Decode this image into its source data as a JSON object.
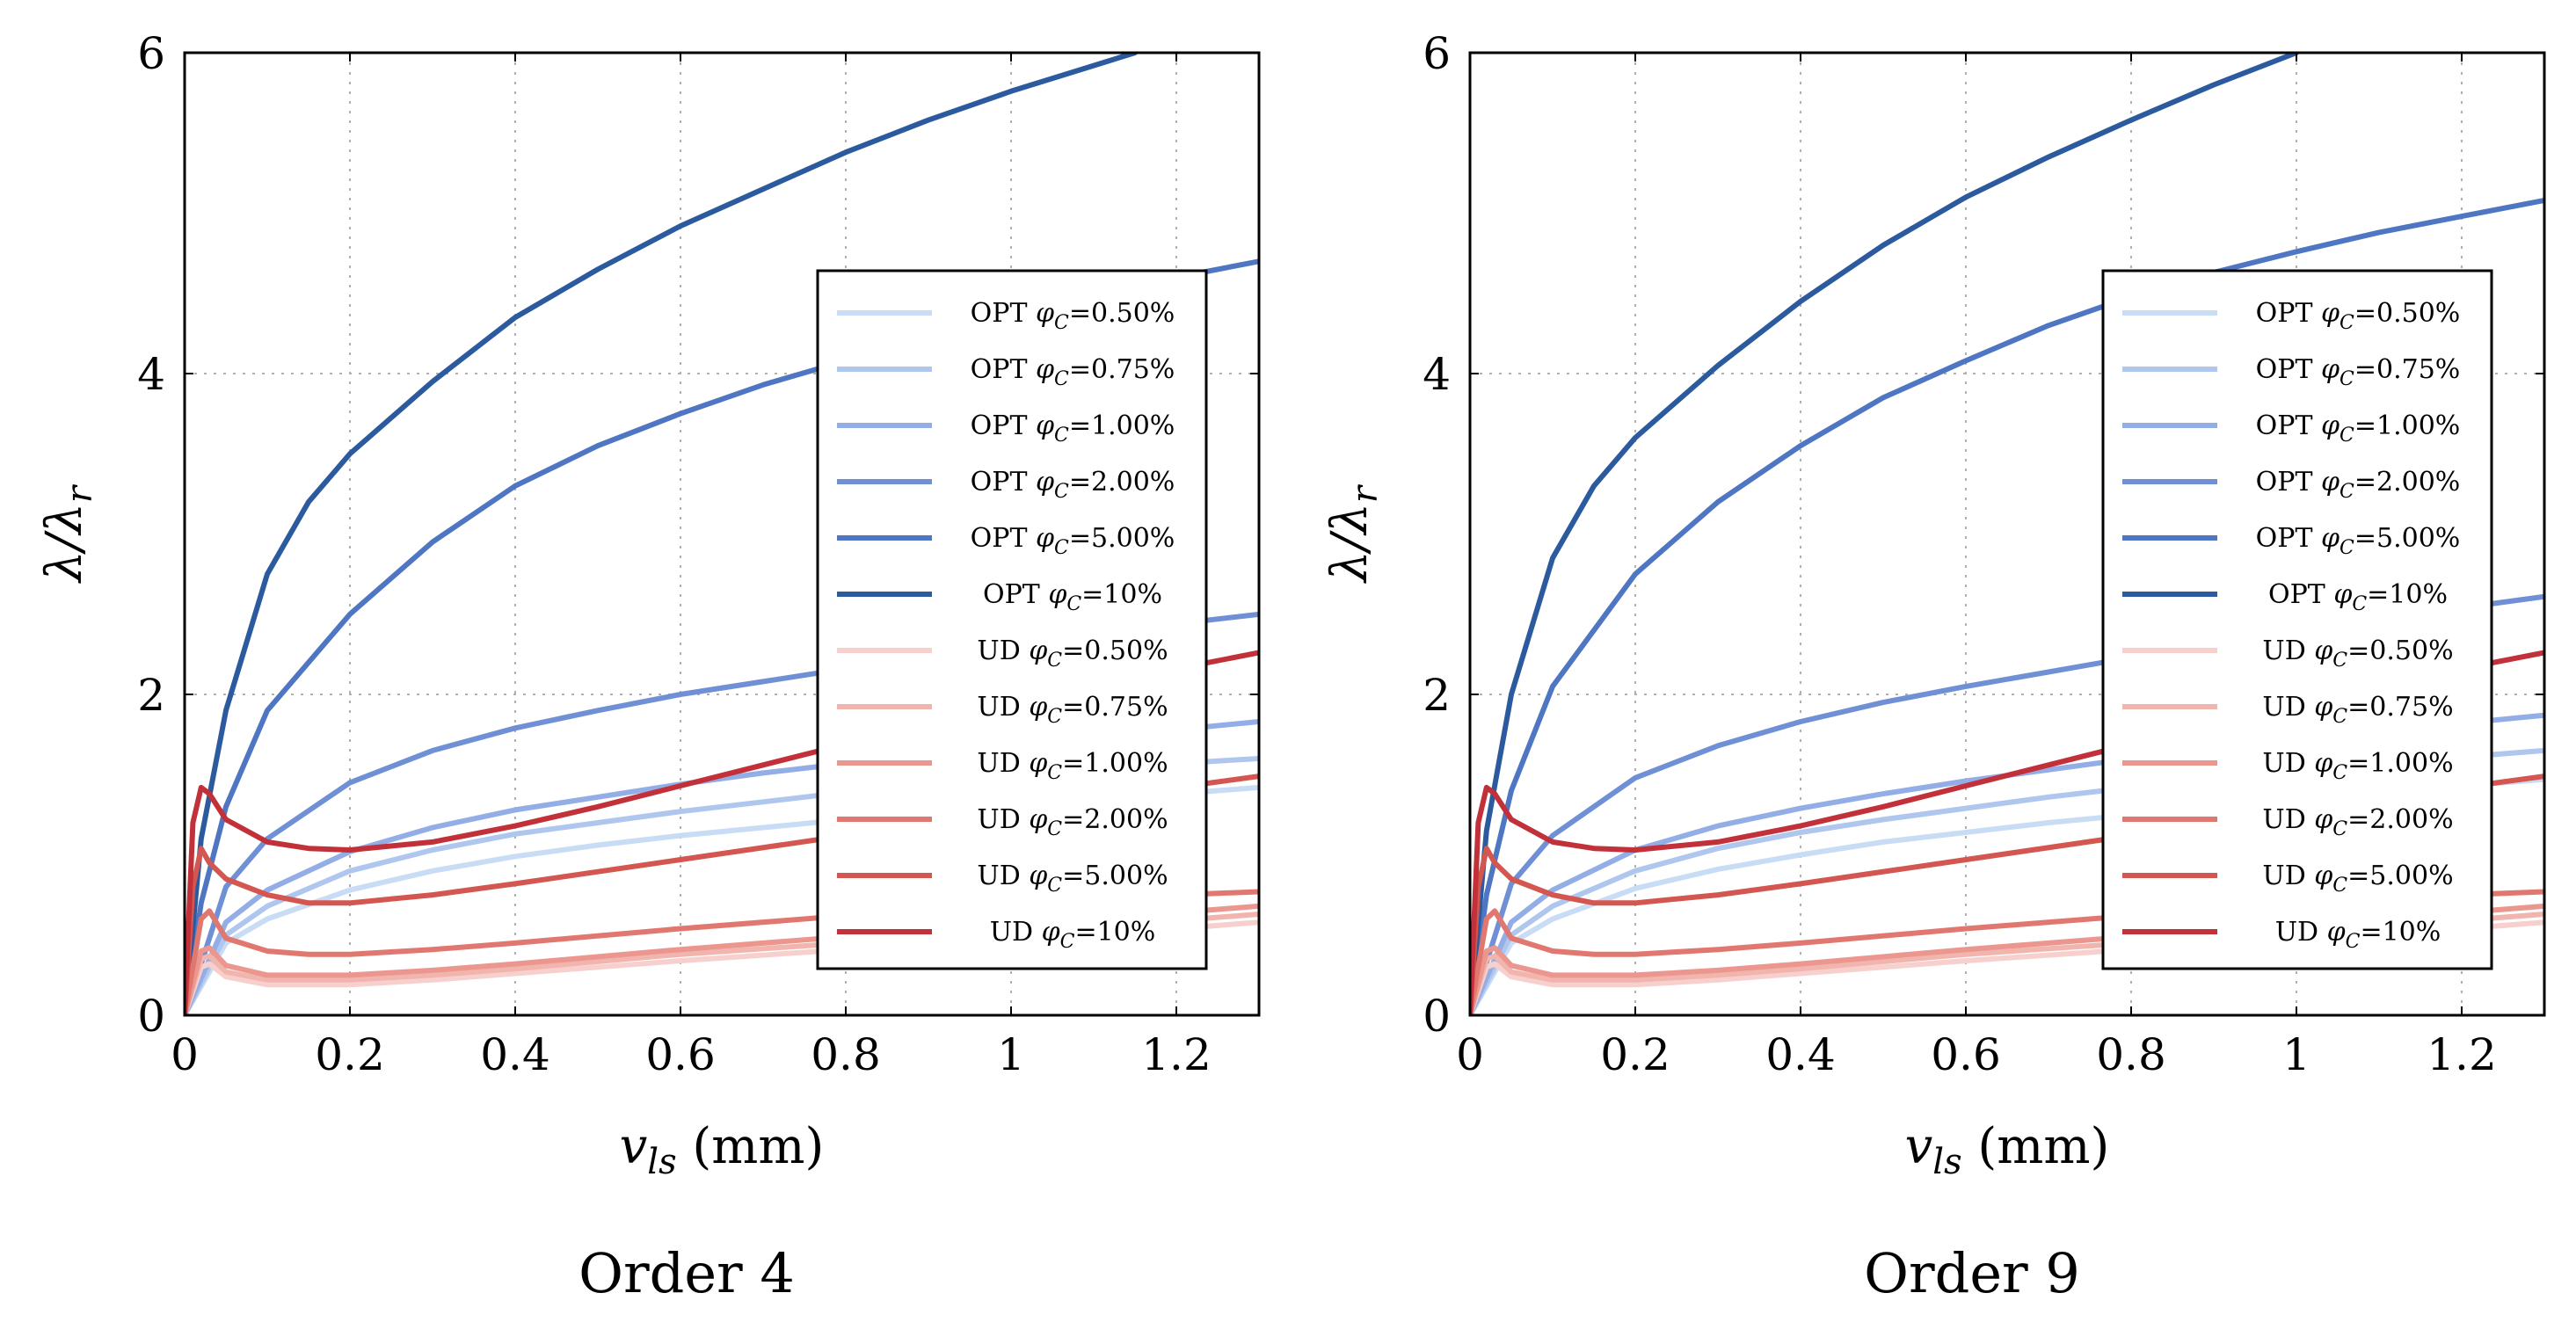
{
  "chart_data": [
    {
      "type": "line",
      "caption": "Order 4",
      "xlabel": "v_ls (mm)",
      "ylabel": "λ/λ_r",
      "xlim": [
        0,
        1.3
      ],
      "ylim": [
        0,
        6
      ],
      "xticks": [
        0,
        0.2,
        0.4,
        0.6,
        0.8,
        1,
        1.2
      ],
      "xtick_labels": [
        "0",
        "0.2",
        "0.4",
        "0.6",
        "0.8",
        "1",
        "1.2"
      ],
      "yticks": [
        0,
        2,
        4,
        6
      ],
      "ytick_labels": [
        "0",
        "2",
        "4",
        "6"
      ],
      "grid": true,
      "legend_position": "right-center",
      "series": [
        {
          "name": "OPT φC=0.50%",
          "prefix": "OPT",
          "value": "=0.50%",
          "color": "#c9dcf5",
          "x": [
            0,
            0.05,
            0.1,
            0.2,
            0.3,
            0.4,
            0.5,
            0.6,
            0.7,
            0.8,
            0.9,
            1.0,
            1.1,
            1.2,
            1.3
          ],
          "y": [
            0,
            0.45,
            0.6,
            0.78,
            0.9,
            0.99,
            1.06,
            1.12,
            1.17,
            1.22,
            1.26,
            1.3,
            1.34,
            1.38,
            1.42
          ]
        },
        {
          "name": "OPT φC=0.75%",
          "prefix": "OPT",
          "value": "=0.75%",
          "color": "#afc6ee",
          "x": [
            0,
            0.05,
            0.1,
            0.2,
            0.3,
            0.4,
            0.5,
            0.6,
            0.7,
            0.8,
            0.9,
            1.0,
            1.1,
            1.2,
            1.3
          ],
          "y": [
            0,
            0.5,
            0.68,
            0.9,
            1.03,
            1.13,
            1.2,
            1.27,
            1.33,
            1.39,
            1.44,
            1.49,
            1.53,
            1.57,
            1.6
          ]
        },
        {
          "name": "OPT φC=1.00%",
          "prefix": "OPT",
          "value": "=1.00%",
          "color": "#93aee6",
          "x": [
            0,
            0.05,
            0.1,
            0.2,
            0.3,
            0.4,
            0.5,
            0.6,
            0.7,
            0.8,
            0.9,
            1.0,
            1.1,
            1.2,
            1.3
          ],
          "y": [
            0,
            0.58,
            0.78,
            1.02,
            1.17,
            1.28,
            1.36,
            1.44,
            1.51,
            1.57,
            1.63,
            1.68,
            1.73,
            1.78,
            1.83
          ]
        },
        {
          "name": "OPT φC=2.00%",
          "prefix": "OPT",
          "value": "=2.00%",
          "color": "#7090d6",
          "x": [
            0,
            0.05,
            0.1,
            0.2,
            0.3,
            0.4,
            0.5,
            0.6,
            0.7,
            0.8,
            0.9,
            1.0,
            1.1,
            1.2,
            1.3
          ],
          "y": [
            0,
            0.8,
            1.1,
            1.45,
            1.65,
            1.79,
            1.9,
            2.0,
            2.08,
            2.16,
            2.24,
            2.31,
            2.38,
            2.44,
            2.5
          ]
        },
        {
          "name": "OPT φC=5.00%",
          "prefix": "OPT",
          "value": "=5.00%",
          "color": "#4f76c2",
          "x": [
            0,
            0.02,
            0.05,
            0.1,
            0.2,
            0.3,
            0.4,
            0.5,
            0.6,
            0.7,
            0.8,
            0.9,
            1.0,
            1.1,
            1.2,
            1.3
          ],
          "y": [
            0,
            0.7,
            1.3,
            1.9,
            2.5,
            2.95,
            3.3,
            3.55,
            3.75,
            3.93,
            4.08,
            4.22,
            4.35,
            4.48,
            4.6,
            4.7
          ]
        },
        {
          "name": "OPT φC=10%",
          "prefix": "OPT",
          "value": "=10%",
          "color": "#2c5a9e",
          "x": [
            0,
            0.02,
            0.05,
            0.1,
            0.15,
            0.2,
            0.3,
            0.4,
            0.5,
            0.6,
            0.7,
            0.8,
            0.9,
            1.0,
            1.1,
            1.15
          ],
          "y": [
            0,
            1.1,
            1.9,
            2.75,
            3.2,
            3.5,
            3.95,
            4.35,
            4.65,
            4.92,
            5.15,
            5.38,
            5.58,
            5.76,
            5.92,
            6.0
          ]
        },
        {
          "name": "UD φC=0.50%",
          "prefix": "UD",
          "value": "=0.50%",
          "color": "#f7d0cd",
          "x": [
            0,
            0.02,
            0.03,
            0.05,
            0.1,
            0.2,
            0.3,
            0.4,
            0.6,
            0.8,
            1.0,
            1.2,
            1.3
          ],
          "y": [
            0,
            0.3,
            0.32,
            0.24,
            0.19,
            0.19,
            0.22,
            0.26,
            0.34,
            0.41,
            0.47,
            0.54,
            0.58
          ]
        },
        {
          "name": "UD φC=0.75%",
          "prefix": "UD",
          "value": "=0.75%",
          "color": "#f2b5ae",
          "x": [
            0,
            0.02,
            0.03,
            0.05,
            0.1,
            0.2,
            0.3,
            0.4,
            0.6,
            0.8,
            1.0,
            1.2,
            1.3
          ],
          "y": [
            0,
            0.35,
            0.37,
            0.27,
            0.22,
            0.22,
            0.25,
            0.29,
            0.38,
            0.45,
            0.52,
            0.59,
            0.63
          ]
        },
        {
          "name": "UD φC=1.00%",
          "prefix": "UD",
          "value": "=1.00%",
          "color": "#eb978f",
          "x": [
            0,
            0.02,
            0.03,
            0.05,
            0.1,
            0.2,
            0.3,
            0.4,
            0.6,
            0.8,
            1.0,
            1.2,
            1.3
          ],
          "y": [
            0,
            0.4,
            0.42,
            0.31,
            0.25,
            0.25,
            0.28,
            0.32,
            0.41,
            0.49,
            0.57,
            0.64,
            0.68
          ]
        },
        {
          "name": "UD φC=2.00%",
          "prefix": "UD",
          "value": "=2.00%",
          "color": "#e17870",
          "x": [
            0,
            0.02,
            0.03,
            0.05,
            0.1,
            0.15,
            0.2,
            0.3,
            0.4,
            0.6,
            0.8,
            1.0,
            1.2,
            1.3
          ],
          "y": [
            0,
            0.6,
            0.65,
            0.48,
            0.4,
            0.38,
            0.38,
            0.41,
            0.45,
            0.54,
            0.62,
            0.69,
            0.75,
            0.77
          ]
        },
        {
          "name": "UD φC=5.00%",
          "prefix": "UD",
          "value": "=5.00%",
          "color": "#d45650",
          "x": [
            0,
            0.01,
            0.02,
            0.03,
            0.05,
            0.1,
            0.15,
            0.2,
            0.3,
            0.4,
            0.6,
            0.8,
            1.0,
            1.2,
            1.3
          ],
          "y": [
            0,
            0.8,
            1.04,
            0.95,
            0.85,
            0.75,
            0.7,
            0.7,
            0.75,
            0.82,
            0.97,
            1.12,
            1.27,
            1.42,
            1.49
          ]
        },
        {
          "name": "UD φC=10%",
          "prefix": "UD",
          "value": "=10%",
          "color": "#c2303a",
          "x": [
            0,
            0.01,
            0.02,
            0.03,
            0.05,
            0.1,
            0.15,
            0.2,
            0.3,
            0.4,
            0.5,
            0.6,
            0.7,
            0.8,
            0.9,
            1.0,
            1.1,
            1.2,
            1.3
          ],
          "y": [
            0,
            1.2,
            1.42,
            1.38,
            1.22,
            1.08,
            1.04,
            1.03,
            1.08,
            1.18,
            1.3,
            1.43,
            1.56,
            1.69,
            1.81,
            1.93,
            2.05,
            2.16,
            2.26
          ]
        }
      ]
    },
    {
      "type": "line",
      "caption": "Order 9",
      "xlabel": "v_ls (mm)",
      "ylabel": "λ/λ_r",
      "xlim": [
        0,
        1.3
      ],
      "ylim": [
        0,
        6
      ],
      "xticks": [
        0,
        0.2,
        0.4,
        0.6,
        0.8,
        1,
        1.2
      ],
      "xtick_labels": [
        "0",
        "0.2",
        "0.4",
        "0.6",
        "0.8",
        "1",
        "1.2"
      ],
      "yticks": [
        0,
        2,
        4,
        6
      ],
      "ytick_labels": [
        "0",
        "2",
        "4",
        "6"
      ],
      "grid": true,
      "legend_position": "right-center",
      "series": [
        {
          "name": "OPT φC=0.50%",
          "prefix": "OPT",
          "value": "=0.50%",
          "color": "#c9dcf5",
          "x": [
            0,
            0.05,
            0.1,
            0.2,
            0.3,
            0.4,
            0.5,
            0.6,
            0.7,
            0.8,
            0.9,
            1.0,
            1.1,
            1.2,
            1.3
          ],
          "y": [
            0,
            0.45,
            0.6,
            0.79,
            0.91,
            1.0,
            1.08,
            1.14,
            1.2,
            1.25,
            1.3,
            1.35,
            1.39,
            1.43,
            1.47
          ]
        },
        {
          "name": "OPT φC=0.75%",
          "prefix": "OPT",
          "value": "=0.75%",
          "color": "#afc6ee",
          "x": [
            0,
            0.05,
            0.1,
            0.2,
            0.3,
            0.4,
            0.5,
            0.6,
            0.7,
            0.8,
            0.9,
            1.0,
            1.1,
            1.2,
            1.3
          ],
          "y": [
            0,
            0.5,
            0.68,
            0.9,
            1.04,
            1.14,
            1.22,
            1.29,
            1.36,
            1.42,
            1.47,
            1.52,
            1.57,
            1.61,
            1.65
          ]
        },
        {
          "name": "OPT φC=1.00%",
          "prefix": "OPT",
          "value": "=1.00%",
          "color": "#93aee6",
          "x": [
            0,
            0.05,
            0.1,
            0.2,
            0.3,
            0.4,
            0.5,
            0.6,
            0.7,
            0.8,
            0.9,
            1.0,
            1.1,
            1.2,
            1.3
          ],
          "y": [
            0,
            0.58,
            0.78,
            1.03,
            1.18,
            1.29,
            1.38,
            1.46,
            1.53,
            1.6,
            1.66,
            1.72,
            1.77,
            1.82,
            1.87
          ]
        },
        {
          "name": "OPT φC=2.00%",
          "prefix": "OPT",
          "value": "=2.00%",
          "color": "#7090d6",
          "x": [
            0,
            0.05,
            0.1,
            0.2,
            0.3,
            0.4,
            0.5,
            0.6,
            0.7,
            0.8,
            0.9,
            1.0,
            1.1,
            1.2,
            1.3
          ],
          "y": [
            0,
            0.82,
            1.12,
            1.48,
            1.68,
            1.83,
            1.95,
            2.05,
            2.14,
            2.23,
            2.31,
            2.39,
            2.47,
            2.54,
            2.61
          ]
        },
        {
          "name": "OPT φC=5.00%",
          "prefix": "OPT",
          "value": "=5.00%",
          "color": "#4f76c2",
          "x": [
            0,
            0.02,
            0.05,
            0.1,
            0.2,
            0.3,
            0.4,
            0.5,
            0.6,
            0.7,
            0.8,
            0.9,
            1.0,
            1.1,
            1.2,
            1.3
          ],
          "y": [
            0,
            0.75,
            1.4,
            2.05,
            2.75,
            3.2,
            3.55,
            3.85,
            4.08,
            4.3,
            4.48,
            4.63,
            4.76,
            4.88,
            4.98,
            5.08
          ]
        },
        {
          "name": "OPT φC=10%",
          "prefix": "OPT",
          "value": "=10%",
          "color": "#2c5a9e",
          "x": [
            0,
            0.02,
            0.05,
            0.1,
            0.15,
            0.2,
            0.3,
            0.4,
            0.5,
            0.6,
            0.7,
            0.8,
            0.9,
            1.0
          ],
          "y": [
            0,
            1.15,
            2.0,
            2.85,
            3.3,
            3.6,
            4.05,
            4.45,
            4.8,
            5.1,
            5.35,
            5.58,
            5.8,
            6.0
          ]
        },
        {
          "name": "UD φC=0.50%",
          "prefix": "UD",
          "value": "=0.50%",
          "color": "#f7d0cd",
          "x": [
            0,
            0.02,
            0.03,
            0.05,
            0.1,
            0.2,
            0.3,
            0.4,
            0.6,
            0.8,
            1.0,
            1.2,
            1.3
          ],
          "y": [
            0,
            0.3,
            0.32,
            0.24,
            0.19,
            0.19,
            0.22,
            0.26,
            0.34,
            0.41,
            0.47,
            0.54,
            0.58
          ]
        },
        {
          "name": "UD φC=0.75%",
          "prefix": "UD",
          "value": "=0.75%",
          "color": "#f2b5ae",
          "x": [
            0,
            0.02,
            0.03,
            0.05,
            0.1,
            0.2,
            0.3,
            0.4,
            0.6,
            0.8,
            1.0,
            1.2,
            1.3
          ],
          "y": [
            0,
            0.35,
            0.37,
            0.27,
            0.22,
            0.22,
            0.25,
            0.29,
            0.38,
            0.45,
            0.52,
            0.59,
            0.63
          ]
        },
        {
          "name": "UD φC=1.00%",
          "prefix": "UD",
          "value": "=1.00%",
          "color": "#eb978f",
          "x": [
            0,
            0.02,
            0.03,
            0.05,
            0.1,
            0.2,
            0.3,
            0.4,
            0.6,
            0.8,
            1.0,
            1.2,
            1.3
          ],
          "y": [
            0,
            0.4,
            0.42,
            0.31,
            0.25,
            0.25,
            0.28,
            0.32,
            0.41,
            0.49,
            0.57,
            0.64,
            0.68
          ]
        },
        {
          "name": "UD φC=2.00%",
          "prefix": "UD",
          "value": "=2.00%",
          "color": "#e17870",
          "x": [
            0,
            0.02,
            0.03,
            0.05,
            0.1,
            0.15,
            0.2,
            0.3,
            0.4,
            0.6,
            0.8,
            1.0,
            1.2,
            1.3
          ],
          "y": [
            0,
            0.6,
            0.65,
            0.48,
            0.4,
            0.38,
            0.38,
            0.41,
            0.45,
            0.54,
            0.62,
            0.69,
            0.75,
            0.77
          ]
        },
        {
          "name": "UD φC=5.00%",
          "prefix": "UD",
          "value": "=5.00%",
          "color": "#d45650",
          "x": [
            0,
            0.01,
            0.02,
            0.03,
            0.05,
            0.1,
            0.15,
            0.2,
            0.3,
            0.4,
            0.6,
            0.8,
            1.0,
            1.2,
            1.3
          ],
          "y": [
            0,
            0.8,
            1.04,
            0.95,
            0.85,
            0.75,
            0.7,
            0.7,
            0.75,
            0.82,
            0.97,
            1.12,
            1.27,
            1.42,
            1.49
          ]
        },
        {
          "name": "UD φC=10%",
          "prefix": "UD",
          "value": "=10%",
          "color": "#c2303a",
          "x": [
            0,
            0.01,
            0.02,
            0.03,
            0.05,
            0.1,
            0.15,
            0.2,
            0.3,
            0.4,
            0.5,
            0.6,
            0.7,
            0.8,
            0.9,
            1.0,
            1.1,
            1.2,
            1.3
          ],
          "y": [
            0,
            1.2,
            1.42,
            1.38,
            1.22,
            1.08,
            1.04,
            1.03,
            1.08,
            1.18,
            1.3,
            1.43,
            1.56,
            1.69,
            1.81,
            1.93,
            2.05,
            2.16,
            2.26
          ]
        }
      ]
    }
  ]
}
